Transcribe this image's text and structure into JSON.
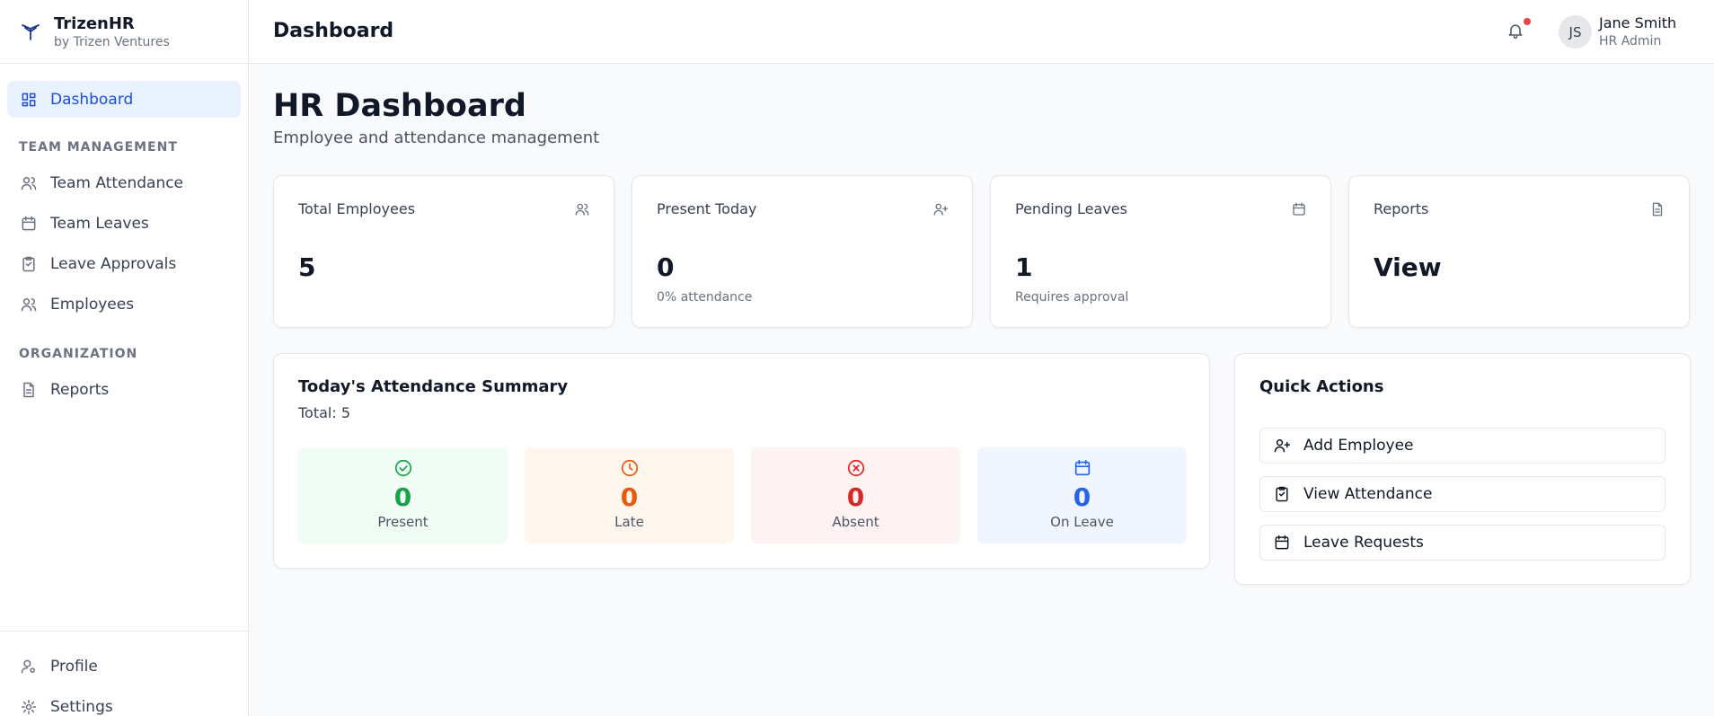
{
  "sidebar": {
    "brand": "TrizenHR",
    "tagline": "by Trizen Ventures",
    "top": [
      "Dashboard"
    ],
    "sections": [
      {
        "title": "TEAM MANAGEMENT",
        "items": [
          "Team Attendance",
          "Team Leaves",
          "Leave Approvals",
          "Employees"
        ]
      },
      {
        "title": "ORGANIZATION",
        "items": [
          "Reports"
        ]
      }
    ],
    "footer": [
      "Profile",
      "Settings"
    ]
  },
  "header": {
    "title": "Dashboard",
    "user": {
      "initials": "JS",
      "name": "Jane Smith",
      "role": "HR Admin"
    }
  },
  "page": {
    "title": "HR Dashboard",
    "subtitle": "Employee and attendance management"
  },
  "stats": [
    {
      "label": "Total Employees",
      "value": "5"
    },
    {
      "label": "Present Today",
      "value": "0",
      "note": "0% attendance"
    },
    {
      "label": "Pending Leaves",
      "value": "1",
      "note": "Requires approval"
    },
    {
      "label": "Reports",
      "value": "View"
    }
  ],
  "summary": {
    "title": "Today's Attendance Summary",
    "total": "Total: 5",
    "items": [
      {
        "value": "0",
        "label": "Present"
      },
      {
        "value": "0",
        "label": "Late"
      },
      {
        "value": "0",
        "label": "Absent"
      },
      {
        "value": "0",
        "label": "On Leave"
      }
    ]
  },
  "quick_actions": {
    "title": "Quick Actions",
    "actions": [
      "Add Employee",
      "View Attendance",
      "Leave Requests"
    ]
  }
}
